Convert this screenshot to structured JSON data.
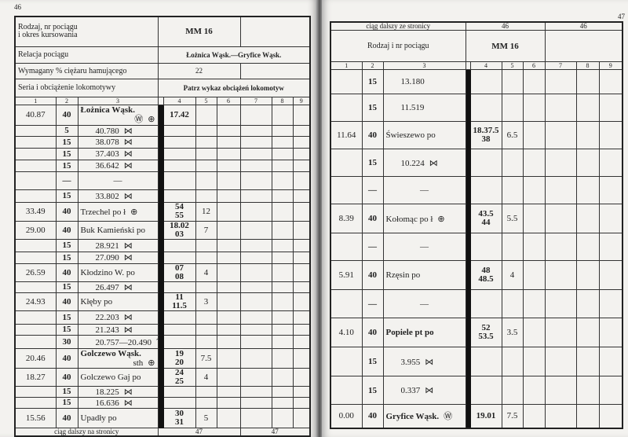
{
  "left": {
    "page_number": "46",
    "header": {
      "train_label": "Rodzaj, nr pociągu\ni okres kursowania",
      "train": "MM 16",
      "relation_label": "Relacja pociągu",
      "relation": "Łożnica Wąsk.—Gryfice Wąsk.",
      "brake_label": "Wymagany % ciężaru hamującego",
      "brake": "22",
      "loco_label": "Seria i obciążenie lokomotywy",
      "loco": "Patrz wykaz obciążeń lokomotyw"
    },
    "column_numbers": [
      "1",
      "2",
      "3",
      "4",
      "5",
      "6",
      "7",
      "8",
      "9"
    ],
    "rows": [
      {
        "km": "40.87",
        "speed": "40",
        "name": "Łożnica Wąsk.",
        "bold": true,
        "icons": [
          "water",
          "plus-circle"
        ],
        "times": [
          "17.42"
        ],
        "c5": ""
      },
      {
        "km": "",
        "speed": "5",
        "name": "40.780",
        "icons": [
          "switch"
        ],
        "times": [],
        "c5": ""
      },
      {
        "km": "",
        "speed": "15",
        "name": "38.078",
        "icons": [
          "switch"
        ],
        "times": [],
        "c5": ""
      },
      {
        "km": "",
        "speed": "15",
        "name": "37.403",
        "icons": [
          "switch"
        ],
        "times": [],
        "c5": ""
      },
      {
        "km": "",
        "speed": "15",
        "name": "36.642",
        "icons": [
          "switch"
        ],
        "times": [],
        "c5": ""
      },
      {
        "km": "",
        "speed": "—",
        "name": "—",
        "icons": [],
        "times": [],
        "c5": ""
      },
      {
        "km": "",
        "speed": "15",
        "name": "33.802",
        "icons": [
          "switch"
        ],
        "times": [],
        "c5": ""
      },
      {
        "km": "33.49",
        "speed": "40",
        "name": "Trzechel po ł",
        "icons": [
          "plus-circle"
        ],
        "times": [
          "54",
          "55"
        ],
        "c5": "12"
      },
      {
        "km": "29.00",
        "speed": "40",
        "name": "Buk Kamieński po",
        "icons": [],
        "times": [
          "18.02",
          "03"
        ],
        "c5": "7"
      },
      {
        "km": "",
        "speed": "15",
        "name": "28.921",
        "icons": [
          "switch"
        ],
        "times": [],
        "c5": ""
      },
      {
        "km": "",
        "speed": "15",
        "name": "27.090",
        "icons": [
          "switch"
        ],
        "times": [],
        "c5": ""
      },
      {
        "km": "26.59",
        "speed": "40",
        "name": "Kłodzino W. po",
        "icons": [],
        "times": [
          "07",
          "08"
        ],
        "c5": "4"
      },
      {
        "km": "",
        "speed": "15",
        "name": "26.497",
        "icons": [
          "switch"
        ],
        "times": [],
        "c5": ""
      },
      {
        "km": "24.93",
        "speed": "40",
        "name": "Kłęby po",
        "icons": [],
        "times": [
          "11",
          "11.5"
        ],
        "c5": "3"
      },
      {
        "km": "",
        "speed": "15",
        "name": "22.203",
        "icons": [
          "switch"
        ],
        "times": [],
        "c5": ""
      },
      {
        "km": "",
        "speed": "15",
        "name": "21.243",
        "icons": [
          "switch"
        ],
        "times": [],
        "c5": ""
      },
      {
        "km": "",
        "speed": "30",
        "name": "20.757—20.490",
        "icons": [
          "curve"
        ],
        "times": [],
        "c5": ""
      },
      {
        "km": "20.46",
        "speed": "40",
        "name": "Golczewo Wąsk.",
        "sub": "sth",
        "bold": true,
        "icons": [
          "plus-circle"
        ],
        "times": [
          "19",
          "20"
        ],
        "c5": "7.5"
      },
      {
        "km": "18.27",
        "speed": "40",
        "name": "Golczewo Gaj po",
        "icons": [],
        "times": [
          "24",
          "25"
        ],
        "c5": "4"
      },
      {
        "km": "",
        "speed": "15",
        "name": "18.225",
        "icons": [
          "switch"
        ],
        "times": [],
        "c5": ""
      },
      {
        "km": "",
        "speed": "15",
        "name": "16.636",
        "icons": [
          "switch"
        ],
        "times": [],
        "c5": ""
      },
      {
        "km": "15.56",
        "speed": "40",
        "name": "Upadły po",
        "icons": [],
        "times": [
          "30",
          "31"
        ],
        "c5": "5"
      }
    ],
    "footer": {
      "label": "ciąg dalszy na stronicy",
      "page_a": "47",
      "page_b": "47"
    }
  },
  "right": {
    "page_number": "47",
    "continued": {
      "label": "ciąg dalszy ze stronicy",
      "page_a": "46",
      "page_b": "46"
    },
    "header": {
      "train_label": "Rodzaj i nr pociągu",
      "train": "MM 16"
    },
    "column_numbers": [
      "1",
      "2",
      "3",
      "4",
      "5",
      "6",
      "7",
      "8",
      "9"
    ],
    "rows": [
      {
        "km": "",
        "speed": "15",
        "name": "13.180",
        "icons": [],
        "times": [],
        "c5": ""
      },
      {
        "km": "",
        "speed": "15",
        "name": "11.519",
        "icons": [],
        "times": [],
        "c5": ""
      },
      {
        "km": "11.64",
        "speed": "40",
        "name": "Świeszewo po",
        "icons": [],
        "times": [
          "18.37.5",
          "38"
        ],
        "c5": "6.5"
      },
      {
        "km": "",
        "speed": "15",
        "name": "10.224",
        "icons": [
          "switch"
        ],
        "times": [],
        "c5": ""
      },
      {
        "km": "",
        "speed": "—",
        "name": "—",
        "icons": [],
        "times": [],
        "c5": ""
      },
      {
        "km": "8.39",
        "speed": "40",
        "name": "Kołomąc po ł",
        "icons": [
          "plus-circle"
        ],
        "times": [
          "43.5",
          "44"
        ],
        "c5": "5.5"
      },
      {
        "km": "",
        "speed": "—",
        "name": "—",
        "icons": [],
        "times": [],
        "c5": ""
      },
      {
        "km": "5.91",
        "speed": "40",
        "name": "Rzęsin po",
        "icons": [],
        "times": [
          "48",
          "48.5"
        ],
        "c5": "4"
      },
      {
        "km": "",
        "speed": "—",
        "name": "—",
        "icons": [],
        "times": [],
        "c5": ""
      },
      {
        "km": "4.10",
        "speed": "40",
        "name": "Popiele pt po",
        "bold": true,
        "icons": [],
        "times": [
          "52",
          "53.5"
        ],
        "c5": "3.5"
      },
      {
        "km": "",
        "speed": "15",
        "name": "3.955",
        "icons": [
          "switch"
        ],
        "times": [],
        "c5": ""
      },
      {
        "km": "",
        "speed": "15",
        "name": "0.337",
        "icons": [
          "switch"
        ],
        "times": [],
        "c5": ""
      },
      {
        "km": "0.00",
        "speed": "40",
        "name": "Gryfice Wąsk.",
        "bold": true,
        "icons": [
          "water"
        ],
        "times": [
          "19.01"
        ],
        "c5": "7.5"
      }
    ]
  },
  "icon_glyphs": {
    "water": "Ⓦ",
    "plus-circle": "⊕",
    "switch": "⋈",
    "curve": "⌒"
  }
}
